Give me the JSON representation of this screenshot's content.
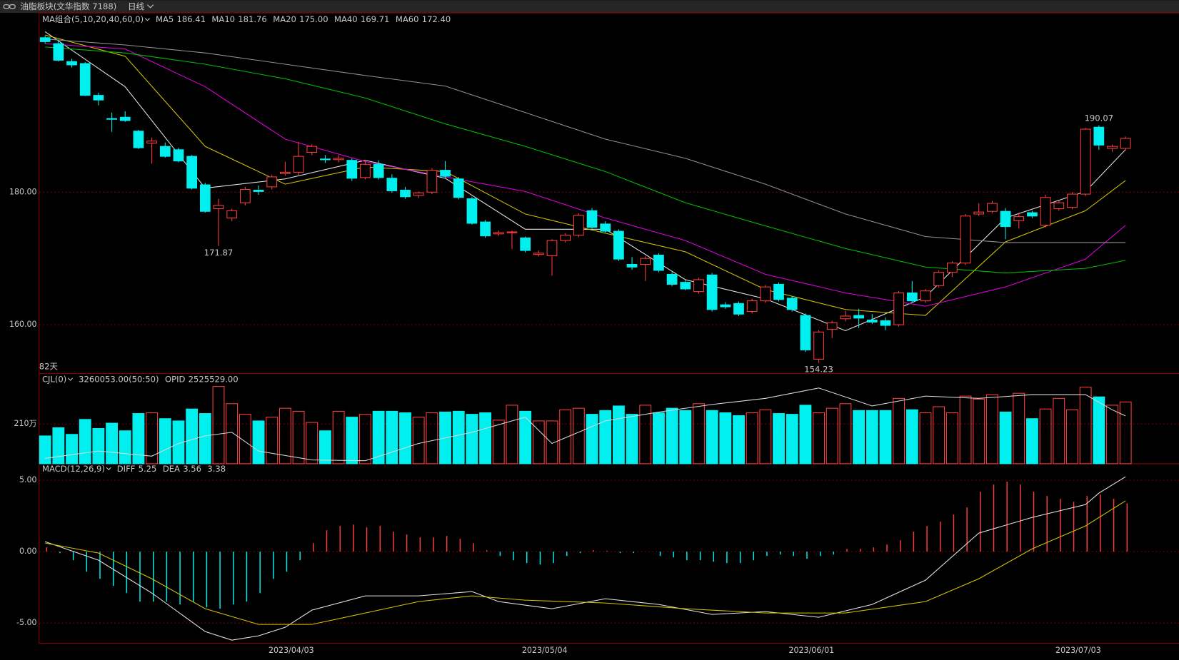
{
  "header": {
    "title": "油脂板块(文华指数 7188)",
    "period": "日线"
  },
  "chart_data": [
    {
      "type": "candlestick",
      "legend_title": "MA组合(5,10,20,40,60,0)",
      "legend_title_color": "#d4c400",
      "count_label": "82天",
      "count_color": "#d4c400",
      "categories": [
        null,
        null,
        null,
        null,
        null,
        null,
        null,
        null,
        null,
        null,
        null,
        null,
        null,
        null,
        null,
        null,
        null,
        null,
        "2023/04/03",
        null,
        null,
        null,
        null,
        null,
        null,
        null,
        null,
        null,
        null,
        null,
        null,
        null,
        null,
        null,
        null,
        null,
        null,
        "2023/05/04",
        null,
        null,
        null,
        null,
        null,
        null,
        null,
        null,
        null,
        null,
        null,
        null,
        null,
        null,
        null,
        null,
        null,
        null,
        null,
        "2023/06/01",
        null,
        null,
        null,
        null,
        null,
        null,
        null,
        null,
        null,
        null,
        null,
        null,
        null,
        null,
        null,
        null,
        null,
        null,
        null,
        "2023/07/03",
        null,
        null,
        null,
        null
      ],
      "open": [
        203.3,
        202.4,
        199.7,
        199.4,
        194.6,
        191.1,
        191.3,
        189.2,
        187.4,
        186.9,
        186.4,
        185.4,
        181.1,
        177.5,
        176.1,
        178.4,
        180.3,
        180.8,
        182.8,
        183.0,
        186.0,
        185.0,
        184.9,
        184.8,
        182.2,
        184.2,
        182.1,
        180.3,
        179.5,
        180.0,
        183.3,
        182.0,
        179.0,
        175.5,
        173.7,
        173.9,
        173.1,
        170.6,
        170.4,
        172.7,
        173.5,
        177.2,
        175.2,
        174.1,
        169.1,
        169.1,
        170.5,
        167.6,
        166.4,
        165.0,
        167.5,
        163.0,
        163.2,
        162.0,
        163.6,
        166.1,
        164.0,
        161.4,
        154.8,
        159.3,
        160.9,
        161.4,
        160.7,
        160.6,
        160.0,
        164.8,
        163.6,
        165.9,
        167.9,
        169.3,
        176.7,
        177.1,
        177.1,
        175.7,
        176.9,
        175.0,
        177.5,
        177.7,
        179.7,
        189.8,
        186.6,
        186.6
      ],
      "high": [
        203.6,
        203.0,
        200.1,
        199.6,
        195.0,
        192.0,
        192.2,
        189.4,
        188.2,
        187.5,
        186.7,
        185.6,
        181.4,
        179.0,
        177.5,
        180.8,
        181.0,
        182.6,
        184.6,
        187.6,
        187.2,
        185.6,
        185.6,
        185.1,
        184.9,
        184.8,
        182.7,
        180.8,
        180.1,
        183.6,
        184.7,
        182.3,
        179.3,
        175.8,
        174.2,
        174.2,
        173.3,
        171.2,
        172.9,
        173.8,
        176.8,
        177.6,
        175.6,
        174.4,
        170.2,
        170.3,
        170.8,
        167.9,
        166.8,
        167.1,
        167.8,
        163.4,
        163.5,
        163.9,
        166.0,
        166.4,
        164.3,
        161.7,
        159.2,
        160.6,
        162.1,
        162.4,
        161.6,
        161.1,
        165.1,
        166.6,
        165.4,
        168.2,
        169.6,
        176.7,
        178.3,
        178.7,
        177.6,
        176.9,
        177.2,
        179.6,
        178.7,
        180.0,
        189.7,
        190.07,
        187.2,
        188.4
      ],
      "low": [
        202.4,
        199.7,
        198.8,
        194.5,
        193.1,
        189.1,
        190.6,
        186.5,
        184.3,
        185.2,
        184.5,
        180.4,
        176.9,
        171.87,
        175.6,
        178.0,
        179.6,
        180.4,
        182.5,
        182.6,
        185.6,
        184.4,
        184.5,
        181.7,
        181.9,
        181.9,
        179.9,
        179.0,
        179.1,
        179.7,
        182.1,
        178.9,
        175.1,
        173.1,
        173.4,
        171.4,
        170.9,
        170.3,
        167.4,
        172.4,
        173.2,
        174.5,
        173.9,
        169.6,
        168.3,
        166.6,
        167.9,
        165.8,
        165.2,
        164.7,
        162.0,
        162.4,
        161.3,
        161.7,
        163.3,
        163.5,
        162.0,
        155.9,
        154.23,
        158.0,
        160.5,
        159.5,
        160.1,
        159.2,
        159.7,
        163.3,
        163.3,
        165.6,
        167.2,
        169.0,
        176.4,
        176.8,
        172.9,
        174.5,
        176.1,
        174.7,
        177.2,
        177.4,
        179.4,
        186.4,
        186.1,
        186.3
      ],
      "close": [
        202.7,
        199.9,
        199.2,
        194.6,
        193.9,
        191.0,
        190.8,
        186.7,
        187.7,
        185.4,
        184.7,
        180.6,
        177.1,
        178.0,
        177.2,
        180.4,
        180.1,
        182.3,
        183.0,
        185.4,
        186.9,
        184.9,
        185.1,
        182.1,
        184.2,
        182.2,
        180.2,
        179.3,
        179.9,
        183.3,
        182.4,
        179.2,
        175.3,
        173.4,
        173.9,
        174.0,
        171.2,
        170.8,
        172.7,
        173.5,
        176.5,
        174.7,
        174.1,
        169.9,
        168.7,
        170.0,
        168.2,
        166.1,
        165.4,
        166.8,
        162.3,
        162.7,
        161.6,
        163.6,
        165.7,
        163.8,
        162.3,
        156.2,
        158.9,
        160.3,
        161.3,
        161.0,
        160.4,
        159.9,
        164.8,
        163.6,
        165.1,
        167.9,
        169.3,
        176.4,
        177.0,
        178.3,
        174.8,
        176.3,
        176.4,
        179.2,
        178.4,
        179.7,
        189.5,
        187.1,
        186.9,
        188.1
      ],
      "up_color": "#ff3c3c",
      "down_color": "#00f0f0",
      "ylim": [
        152.63,
        207.03
      ],
      "yticks": [
        {
          "value": 180,
          "label": "180.00"
        },
        {
          "value": 160,
          "label": "160.00"
        }
      ],
      "grid": true,
      "series": [
        {
          "name": "MA5",
          "color": "#e6e6e6",
          "x": [
            0,
            6,
            12,
            18,
            24,
            30,
            36,
            42,
            48,
            54,
            60,
            66,
            72,
            78,
            81
          ],
          "values": [
            204.2,
            195.9,
            180.6,
            182.0,
            184.8,
            182.1,
            174.4,
            174.4,
            166.8,
            163.9,
            159.1,
            164.2,
            176.1,
            180.1,
            186.41
          ],
          "value_labels": [
            null,
            null,
            null,
            null,
            null,
            null,
            null,
            null,
            null,
            null,
            null,
            null,
            null,
            null,
            "186.41"
          ]
        },
        {
          "name": "MA10",
          "color": "#d4c400",
          "x": [
            0,
            6,
            12,
            18,
            24,
            30,
            36,
            42,
            48,
            54,
            60,
            66,
            72,
            78,
            81
          ],
          "values": [
            203.7,
            200.5,
            186.9,
            181.2,
            183.8,
            183.1,
            176.7,
            173.8,
            171.0,
            165.3,
            162.3,
            161.4,
            172.5,
            177.2,
            181.76
          ],
          "value_labels": [
            null,
            null,
            null,
            null,
            null,
            null,
            null,
            null,
            null,
            null,
            null,
            null,
            null,
            null,
            "181.76"
          ]
        },
        {
          "name": "MA20",
          "color": "#e000e0",
          "x": [
            0,
            6,
            12,
            18,
            24,
            30,
            36,
            42,
            48,
            54,
            60,
            66,
            72,
            78,
            81
          ],
          "values": [
            202.4,
            201.6,
            195.9,
            188.0,
            184.6,
            182.3,
            180.1,
            176.1,
            172.7,
            167.6,
            164.8,
            162.8,
            165.7,
            169.9,
            175.0
          ],
          "value_labels": [
            null,
            null,
            null,
            null,
            null,
            null,
            null,
            null,
            null,
            null,
            null,
            null,
            null,
            null,
            "175.00"
          ]
        },
        {
          "name": "MA40",
          "color": "#00c000",
          "x": [
            0,
            6,
            12,
            18,
            24,
            30,
            36,
            42,
            48,
            54,
            60,
            66,
            72,
            78,
            81
          ],
          "values": [
            201.9,
            201.0,
            199.3,
            197.1,
            194.2,
            190.3,
            186.9,
            183.1,
            178.4,
            174.9,
            171.5,
            168.7,
            167.8,
            168.5,
            169.71
          ],
          "value_labels": [
            null,
            null,
            null,
            null,
            null,
            null,
            null,
            null,
            null,
            null,
            null,
            null,
            null,
            null,
            "169.71"
          ]
        },
        {
          "name": "MA60",
          "color": "#909090",
          "x": [
            0,
            6,
            12,
            18,
            24,
            30,
            36,
            42,
            48,
            54,
            60,
            66,
            72,
            78,
            81
          ],
          "values": [
            203.1,
            202.2,
            201.0,
            199.3,
            197.6,
            196.0,
            192.0,
            188.0,
            185.1,
            181.2,
            176.7,
            173.3,
            172.4,
            172.4,
            172.4
          ],
          "value_labels": [
            null,
            null,
            null,
            null,
            null,
            null,
            null,
            null,
            null,
            null,
            null,
            null,
            null,
            null,
            "172.40"
          ]
        }
      ],
      "annotations": [
        {
          "index": 13,
          "field": "low",
          "color": "#00e0e0"
        },
        {
          "index": 58,
          "field": "low",
          "color": "#00e0e0"
        },
        {
          "index": 79,
          "field": "high",
          "color": "#ff4040"
        }
      ]
    },
    {
      "type": "volume",
      "title": "CJL(0)",
      "subtitle": "3260053.00(50:50)",
      "values": [
        1470000,
        1900000,
        1550000,
        2340000,
        1860000,
        2140000,
        1740000,
        2650000,
        2690000,
        2380000,
        2260000,
        2890000,
        2650000,
        4080000,
        3170000,
        2610000,
        2260000,
        2460000,
        2930000,
        2770000,
        2180000,
        1740000,
        2770000,
        2460000,
        2610000,
        2770000,
        2770000,
        2690000,
        2460000,
        2690000,
        2730000,
        2770000,
        2610000,
        2690000,
        2300000,
        3090000,
        2770000,
        2260000,
        2260000,
        2850000,
        2930000,
        2610000,
        2810000,
        3050000,
        2610000,
        3090000,
        2690000,
        2930000,
        2810000,
        3170000,
        2810000,
        2690000,
        2540000,
        2690000,
        2850000,
        2650000,
        2610000,
        3090000,
        2690000,
        2930000,
        3170000,
        2810000,
        2810000,
        2810000,
        3450000,
        2850000,
        2690000,
        3010000,
        2690000,
        3570000,
        3410000,
        3650000,
        2730000,
        3720000,
        2380000,
        2890000,
        3450000,
        2850000,
        4040000,
        3530000,
        3090000,
        3260053
      ],
      "ylim": [
        0,
        4760000
      ],
      "yticks": [
        {
          "value": 2100000,
          "label": "210万"
        }
      ],
      "grid": true,
      "series": [
        {
          "name": "OPID",
          "color": "#d8d8d8",
          "x": [
            0,
            4,
            8,
            10,
            12,
            14,
            16,
            20,
            24,
            28,
            32,
            36,
            38,
            42,
            46,
            50,
            54,
            58,
            62,
            66,
            70,
            74,
            78,
            80,
            81
          ],
          "values": [
            280000,
            670000,
            400000,
            1070000,
            1470000,
            1660000,
            670000,
            200000,
            160000,
            1070000,
            1660000,
            2460000,
            1070000,
            2260000,
            2730000,
            3130000,
            3450000,
            4000000,
            3050000,
            3570000,
            3450000,
            3650000,
            3650000,
            2850000,
            2525529
          ],
          "value_labels": [
            null,
            null,
            null,
            null,
            null,
            null,
            null,
            null,
            null,
            null,
            null,
            null,
            null,
            null,
            null,
            null,
            null,
            null,
            null,
            null,
            null,
            null,
            null,
            null,
            "2525529.00"
          ]
        }
      ]
    },
    {
      "type": "macd",
      "title": "MACD(12,26,9)",
      "values": [
        0.3,
        -0.1,
        -0.6,
        -1.4,
        -1.9,
        -2.4,
        -2.9,
        -3.5,
        -3.5,
        -3.5,
        -3.7,
        -3.5,
        -3.9,
        -4.0,
        -3.7,
        -3.5,
        -2.9,
        -1.9,
        -1.4,
        -0.6,
        0.6,
        1.5,
        1.8,
        1.9,
        1.7,
        1.8,
        1.4,
        1.2,
        1.0,
        1.0,
        1.1,
        0.9,
        0.6,
        0.1,
        -0.3,
        -0.6,
        -0.8,
        -0.9,
        -0.8,
        -0.3,
        -0.1,
        0.1,
        0.05,
        -0.1,
        -0.1,
        0,
        -0.3,
        -0.4,
        -0.6,
        -0.6,
        -0.7,
        -0.8,
        -0.8,
        -0.6,
        -0.3,
        -0.2,
        -0.3,
        -0.5,
        -0.3,
        -0.2,
        0.2,
        0.2,
        0.3,
        0.5,
        0.8,
        1.4,
        1.8,
        2.1,
        2.6,
        3.1,
        4.2,
        4.7,
        4.9,
        4.7,
        4.2,
        3.9,
        3.7,
        3.5,
        3.9,
        4.0,
        3.7,
        3.38
      ],
      "ylim": [
        -6.42,
        6.16
      ],
      "yticks": [
        {
          "value": 5,
          "label": "5.00"
        },
        {
          "value": 0,
          "label": "0.00"
        },
        {
          "value": -5,
          "label": "-5.00"
        }
      ],
      "grid": true,
      "series": [
        {
          "name": "DIFF",
          "color": "#e6e6e6",
          "x": [
            0,
            4,
            8,
            12,
            14,
            16,
            18,
            20,
            24,
            28,
            32,
            34,
            38,
            42,
            46,
            50,
            54,
            58,
            62,
            66,
            70,
            74,
            78,
            79,
            81
          ],
          "values": [
            0.7,
            -0.6,
            -2.9,
            -5.6,
            -6.2,
            -5.9,
            -5.3,
            -4.1,
            -3.1,
            -3.1,
            -2.8,
            -3.5,
            -4.0,
            -3.3,
            -3.7,
            -4.4,
            -4.2,
            -4.6,
            -3.7,
            -2.0,
            1.3,
            2.4,
            3.3,
            4.1,
            5.25
          ]
        },
        {
          "name": "DEA",
          "color": "#d4c400",
          "x": [
            0,
            4,
            8,
            12,
            16,
            20,
            24,
            28,
            32,
            36,
            42,
            48,
            54,
            60,
            66,
            70,
            74,
            78,
            81
          ],
          "values": [
            0.6,
            -0.1,
            -1.9,
            -4.0,
            -5.1,
            -5.1,
            -4.3,
            -3.5,
            -3.1,
            -3.4,
            -3.6,
            -4.0,
            -4.3,
            -4.3,
            -3.5,
            -1.9,
            0.2,
            1.8,
            3.56
          ]
        }
      ]
    }
  ]
}
